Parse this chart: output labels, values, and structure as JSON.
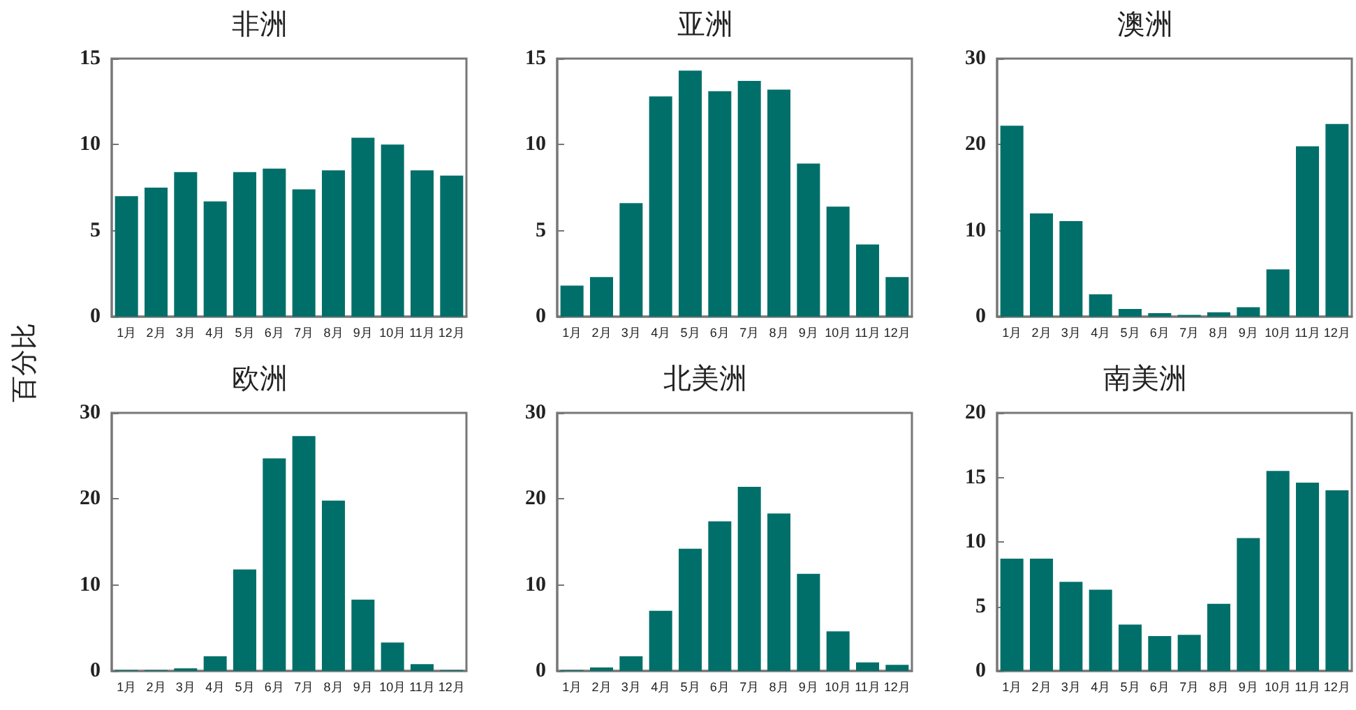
{
  "chart_data": [
    {
      "type": "bar",
      "title": "非洲",
      "ylabel": "百分比",
      "categories": [
        "1月",
        "2月",
        "3月",
        "4月",
        "5月",
        "6月",
        "7月",
        "8月",
        "9月",
        "10月",
        "11月",
        "12月"
      ],
      "values": [
        7.0,
        7.5,
        8.4,
        6.7,
        8.4,
        8.6,
        7.4,
        8.5,
        10.4,
        10.0,
        8.5,
        8.2
      ],
      "color": "#006f6a",
      "ylim": [
        0,
        15
      ],
      "yticks": [
        0,
        5,
        10,
        15
      ],
      "grid": false
    },
    {
      "type": "bar",
      "title": "亚洲",
      "categories": [
        "1月",
        "2月",
        "3月",
        "4月",
        "5月",
        "6月",
        "7月",
        "8月",
        "9月",
        "10月",
        "11月",
        "12月"
      ],
      "values": [
        1.8,
        2.3,
        6.6,
        12.8,
        14.3,
        13.1,
        13.7,
        13.2,
        8.9,
        6.4,
        4.2,
        2.3
      ],
      "color": "#006f6a",
      "ylim": [
        0,
        15
      ],
      "yticks": [
        0,
        5,
        10,
        15
      ],
      "grid": false
    },
    {
      "type": "bar",
      "title": "澳洲",
      "categories": [
        "1月",
        "2月",
        "3月",
        "4月",
        "5月",
        "6月",
        "7月",
        "8月",
        "9月",
        "10月",
        "11月",
        "12月"
      ],
      "values": [
        22.2,
        12.0,
        11.1,
        2.6,
        0.9,
        0.4,
        0.2,
        0.5,
        1.1,
        5.5,
        19.8,
        22.4
      ],
      "color": "#006f6a",
      "ylim": [
        0,
        30
      ],
      "yticks": [
        0,
        10,
        20,
        30
      ],
      "grid": false
    },
    {
      "type": "bar",
      "title": "欧洲",
      "categories": [
        "1月",
        "2月",
        "3月",
        "4月",
        "5月",
        "6月",
        "7月",
        "8月",
        "9月",
        "10月",
        "11月",
        "12月"
      ],
      "values": [
        0.1,
        0.1,
        0.3,
        1.7,
        11.8,
        24.7,
        27.3,
        19.8,
        8.3,
        3.3,
        0.8,
        0.1
      ],
      "color": "#006f6a",
      "ylim": [
        0,
        30
      ],
      "yticks": [
        0,
        10,
        20,
        30
      ],
      "grid": false
    },
    {
      "type": "bar",
      "title": "北美洲",
      "categories": [
        "1月",
        "2月",
        "3月",
        "4月",
        "5月",
        "6月",
        "7月",
        "8月",
        "9月",
        "10月",
        "11月",
        "12月"
      ],
      "values": [
        0.1,
        0.4,
        1.7,
        7.0,
        14.2,
        17.4,
        21.4,
        18.3,
        11.3,
        4.6,
        1.0,
        0.7
      ],
      "color": "#006f6a",
      "ylim": [
        0,
        30
      ],
      "yticks": [
        0,
        10,
        20,
        30
      ],
      "grid": false
    },
    {
      "type": "bar",
      "title": "南美洲",
      "categories": [
        "1月",
        "2月",
        "3月",
        "4月",
        "5月",
        "6月",
        "7月",
        "8月",
        "9月",
        "10月",
        "11月",
        "12月"
      ],
      "values": [
        8.7,
        8.7,
        6.9,
        6.3,
        3.6,
        2.7,
        2.8,
        5.2,
        10.3,
        15.5,
        14.6,
        14.0
      ],
      "color": "#006f6a",
      "ylim": [
        0,
        20
      ],
      "yticks": [
        0,
        5,
        10,
        15,
        20
      ],
      "grid": false
    }
  ]
}
